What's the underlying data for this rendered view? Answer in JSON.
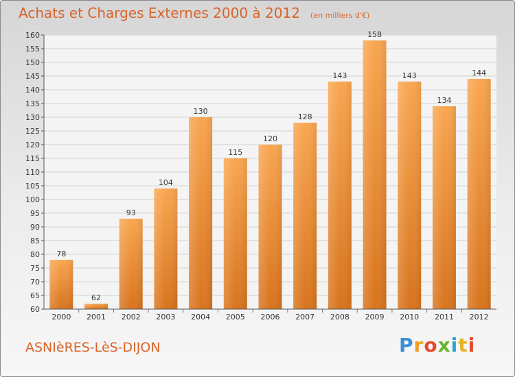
{
  "title": "Achats et Charges Externes 2000 à 2012",
  "unit_note": "(en milliers d'€)",
  "commune": "ASNIèRES-LèS-DIJON",
  "brand": {
    "letters": [
      "P",
      "r",
      "o",
      "x",
      "i",
      "t",
      "i"
    ]
  },
  "colors": {
    "bar_light": "#f9a650",
    "bar_dark": "#d8741e",
    "title": "#d8642b"
  },
  "chart_data": {
    "type": "bar",
    "title": "Achats et Charges Externes 2000 à 2012",
    "xlabel": "",
    "ylabel": "",
    "categories": [
      "2000",
      "2001",
      "2002",
      "2003",
      "2004",
      "2005",
      "2006",
      "2007",
      "2008",
      "2009",
      "2010",
      "2011",
      "2012"
    ],
    "values": [
      78,
      62,
      93,
      104,
      130,
      115,
      120,
      128,
      143,
      158,
      143,
      134,
      144
    ],
    "ylim": [
      60,
      160
    ],
    "yticks": [
      60,
      65,
      70,
      75,
      80,
      85,
      90,
      95,
      100,
      105,
      110,
      115,
      120,
      125,
      130,
      135,
      140,
      145,
      150,
      155,
      160
    ],
    "grid": true,
    "data_labels": true
  }
}
